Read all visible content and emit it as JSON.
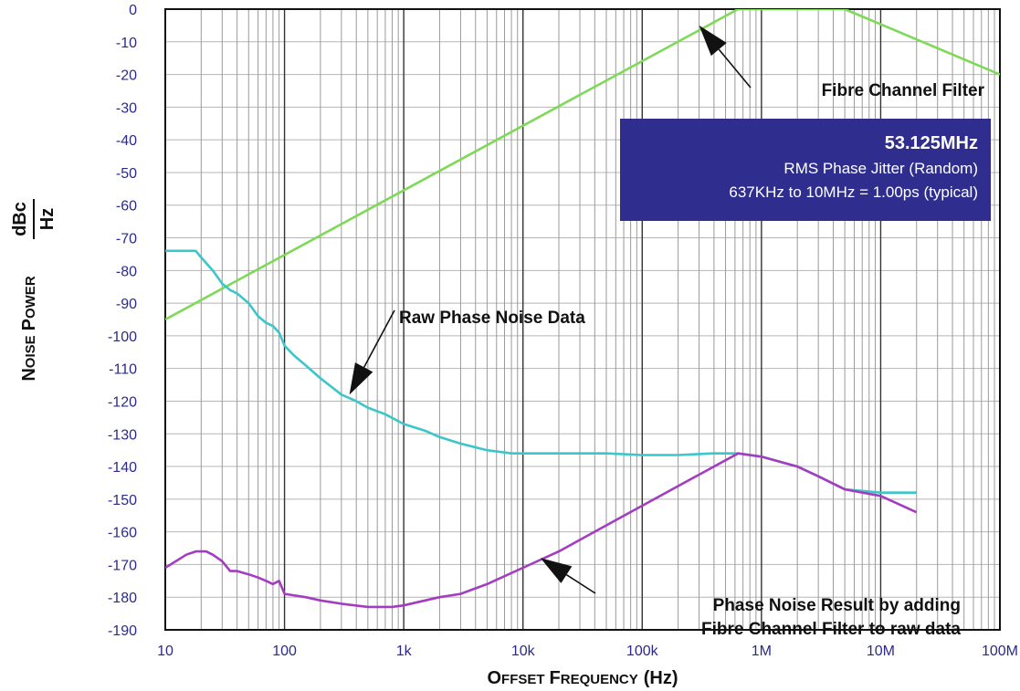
{
  "chart_data": {
    "type": "line",
    "xscale": "log",
    "xlim": [
      10,
      100000000
    ],
    "ylim": [
      -190,
      0
    ],
    "xlabel": {
      "cap1": "O",
      "rest1": "FFSET",
      "cap2": "F",
      "rest2": "REQUENCY",
      "unit": "(Hz)"
    },
    "ylabel": {
      "cap1": "N",
      "rest1": "OISE",
      "cap2": "P",
      "rest2": "OWER",
      "num": "dBc",
      "den": "Hz"
    },
    "x_ticks": [
      {
        "value": 10,
        "label": "10"
      },
      {
        "value": 100,
        "label": "100"
      },
      {
        "value": 1000,
        "label": "1k"
      },
      {
        "value": 10000,
        "label": "10k"
      },
      {
        "value": 100000,
        "label": "100k"
      },
      {
        "value": 1000000,
        "label": "1M"
      },
      {
        "value": 10000000,
        "label": "10M"
      },
      {
        "value": 100000000,
        "label": "100M"
      }
    ],
    "y_ticks": [
      0,
      -10,
      -20,
      -30,
      -40,
      -50,
      -60,
      -70,
      -80,
      -90,
      -100,
      -110,
      -120,
      -130,
      -140,
      -150,
      -160,
      -170,
      -180,
      -190
    ],
    "grid": true,
    "series": [
      {
        "key": "filter",
        "color": "#7ed957",
        "points": [
          [
            10,
            -95
          ],
          [
            637000,
            0
          ],
          [
            5000000,
            0
          ],
          [
            100000000,
            -20
          ]
        ]
      },
      {
        "key": "raw",
        "color": "#3cc6c9",
        "points": [
          [
            10,
            -74
          ],
          [
            15,
            -74
          ],
          [
            18,
            -74
          ],
          [
            20,
            -76
          ],
          [
            25,
            -80
          ],
          [
            30,
            -84
          ],
          [
            35,
            -86
          ],
          [
            40,
            -87
          ],
          [
            50,
            -90
          ],
          [
            60,
            -94
          ],
          [
            70,
            -96
          ],
          [
            80,
            -97
          ],
          [
            90,
            -99
          ],
          [
            100,
            -103
          ],
          [
            120,
            -106
          ],
          [
            150,
            -109
          ],
          [
            200,
            -113
          ],
          [
            300,
            -118
          ],
          [
            400,
            -120
          ],
          [
            500,
            -122
          ],
          [
            700,
            -124
          ],
          [
            1000,
            -127
          ],
          [
            1500,
            -129
          ],
          [
            2000,
            -131
          ],
          [
            3000,
            -133
          ],
          [
            5000,
            -135
          ],
          [
            8000,
            -136
          ],
          [
            10000,
            -136
          ],
          [
            20000,
            -136
          ],
          [
            50000,
            -136
          ],
          [
            100000,
            -136.5
          ],
          [
            200000,
            -136.5
          ],
          [
            400000,
            -136
          ],
          [
            637000,
            -136
          ],
          [
            1000000,
            -137
          ],
          [
            2000000,
            -140
          ],
          [
            3000000,
            -143
          ],
          [
            5000000,
            -147
          ],
          [
            10000000,
            -148
          ],
          [
            20000000,
            -148
          ]
        ]
      },
      {
        "key": "result",
        "color": "#a33cc0",
        "points": [
          [
            10,
            -171
          ],
          [
            15,
            -167
          ],
          [
            18,
            -166
          ],
          [
            22,
            -166
          ],
          [
            25,
            -167
          ],
          [
            30,
            -169
          ],
          [
            35,
            -172
          ],
          [
            40,
            -172
          ],
          [
            50,
            -173
          ],
          [
            60,
            -174
          ],
          [
            70,
            -175
          ],
          [
            80,
            -176
          ],
          [
            90,
            -175
          ],
          [
            100,
            -179
          ],
          [
            150,
            -180
          ],
          [
            200,
            -181
          ],
          [
            300,
            -182
          ],
          [
            500,
            -183
          ],
          [
            800,
            -183
          ],
          [
            1000,
            -182.5
          ],
          [
            2000,
            -180
          ],
          [
            3000,
            -179
          ],
          [
            5000,
            -176
          ],
          [
            10000,
            -171
          ],
          [
            20000,
            -166
          ],
          [
            50000,
            -158
          ],
          [
            100000,
            -152
          ],
          [
            200000,
            -146
          ],
          [
            400000,
            -140
          ],
          [
            637000,
            -136
          ],
          [
            1000000,
            -137
          ],
          [
            2000000,
            -140
          ],
          [
            3000000,
            -143
          ],
          [
            5000000,
            -147
          ],
          [
            10000000,
            -149
          ],
          [
            20000000,
            -154
          ]
        ]
      }
    ],
    "annotations": [
      {
        "key": "filter_label",
        "text": "Fibre Channel Filter",
        "arrow_to": [
          300000,
          -5
        ]
      },
      {
        "key": "raw_label",
        "text": "Raw Phase Noise Data",
        "arrow_to": [
          350,
          -118
        ]
      },
      {
        "key": "result_label",
        "lines": [
          "Phase Noise Result by adding",
          "Fibre Channel Filter to raw data"
        ],
        "arrow_to": [
          14000,
          -168
        ]
      }
    ],
    "info_box": {
      "line1": "53.125MHz",
      "line2": "RMS Phase Jitter (Random)",
      "line3": "637KHz to 10MHz = 1.00ps (typical)"
    }
  }
}
